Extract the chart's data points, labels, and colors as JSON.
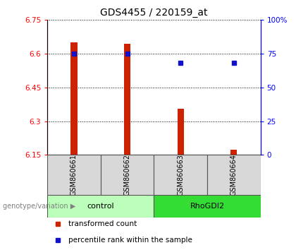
{
  "title": "GDS4455 / 220159_at",
  "samples": [
    "GSM860661",
    "GSM860662",
    "GSM860663",
    "GSM860664"
  ],
  "transformed_counts": [
    6.65,
    6.645,
    6.355,
    6.175
  ],
  "percentile_ranks": [
    75.0,
    75.0,
    68.0,
    68.0
  ],
  "ylim_left": [
    6.15,
    6.75
  ],
  "ylim_right": [
    0,
    100
  ],
  "yticks_left": [
    6.15,
    6.3,
    6.45,
    6.6,
    6.75
  ],
  "yticks_right": [
    0,
    25,
    50,
    75,
    100
  ],
  "ytick_right_labels": [
    "0",
    "25",
    "50",
    "75",
    "100%"
  ],
  "bar_color": "#cc2200",
  "dot_color": "#1111cc",
  "bar_bottom": 6.15,
  "groups": [
    {
      "label": "control",
      "indices": [
        0,
        1
      ],
      "color": "#bbffbb"
    },
    {
      "label": "RhoGDI2",
      "indices": [
        2,
        3
      ],
      "color": "#33dd33"
    }
  ],
  "group_label": "genotype/variation",
  "legend_bar": "transformed count",
  "legend_dot": "percentile rank within the sample",
  "title_fontsize": 10,
  "tick_fontsize": 7.5,
  "sample_label_fontsize": 7,
  "group_label_fontsize": 8,
  "legend_fontsize": 7.5,
  "bar_width": 0.12,
  "cell_color": "#d8d8d8",
  "cell_border": "#555555"
}
